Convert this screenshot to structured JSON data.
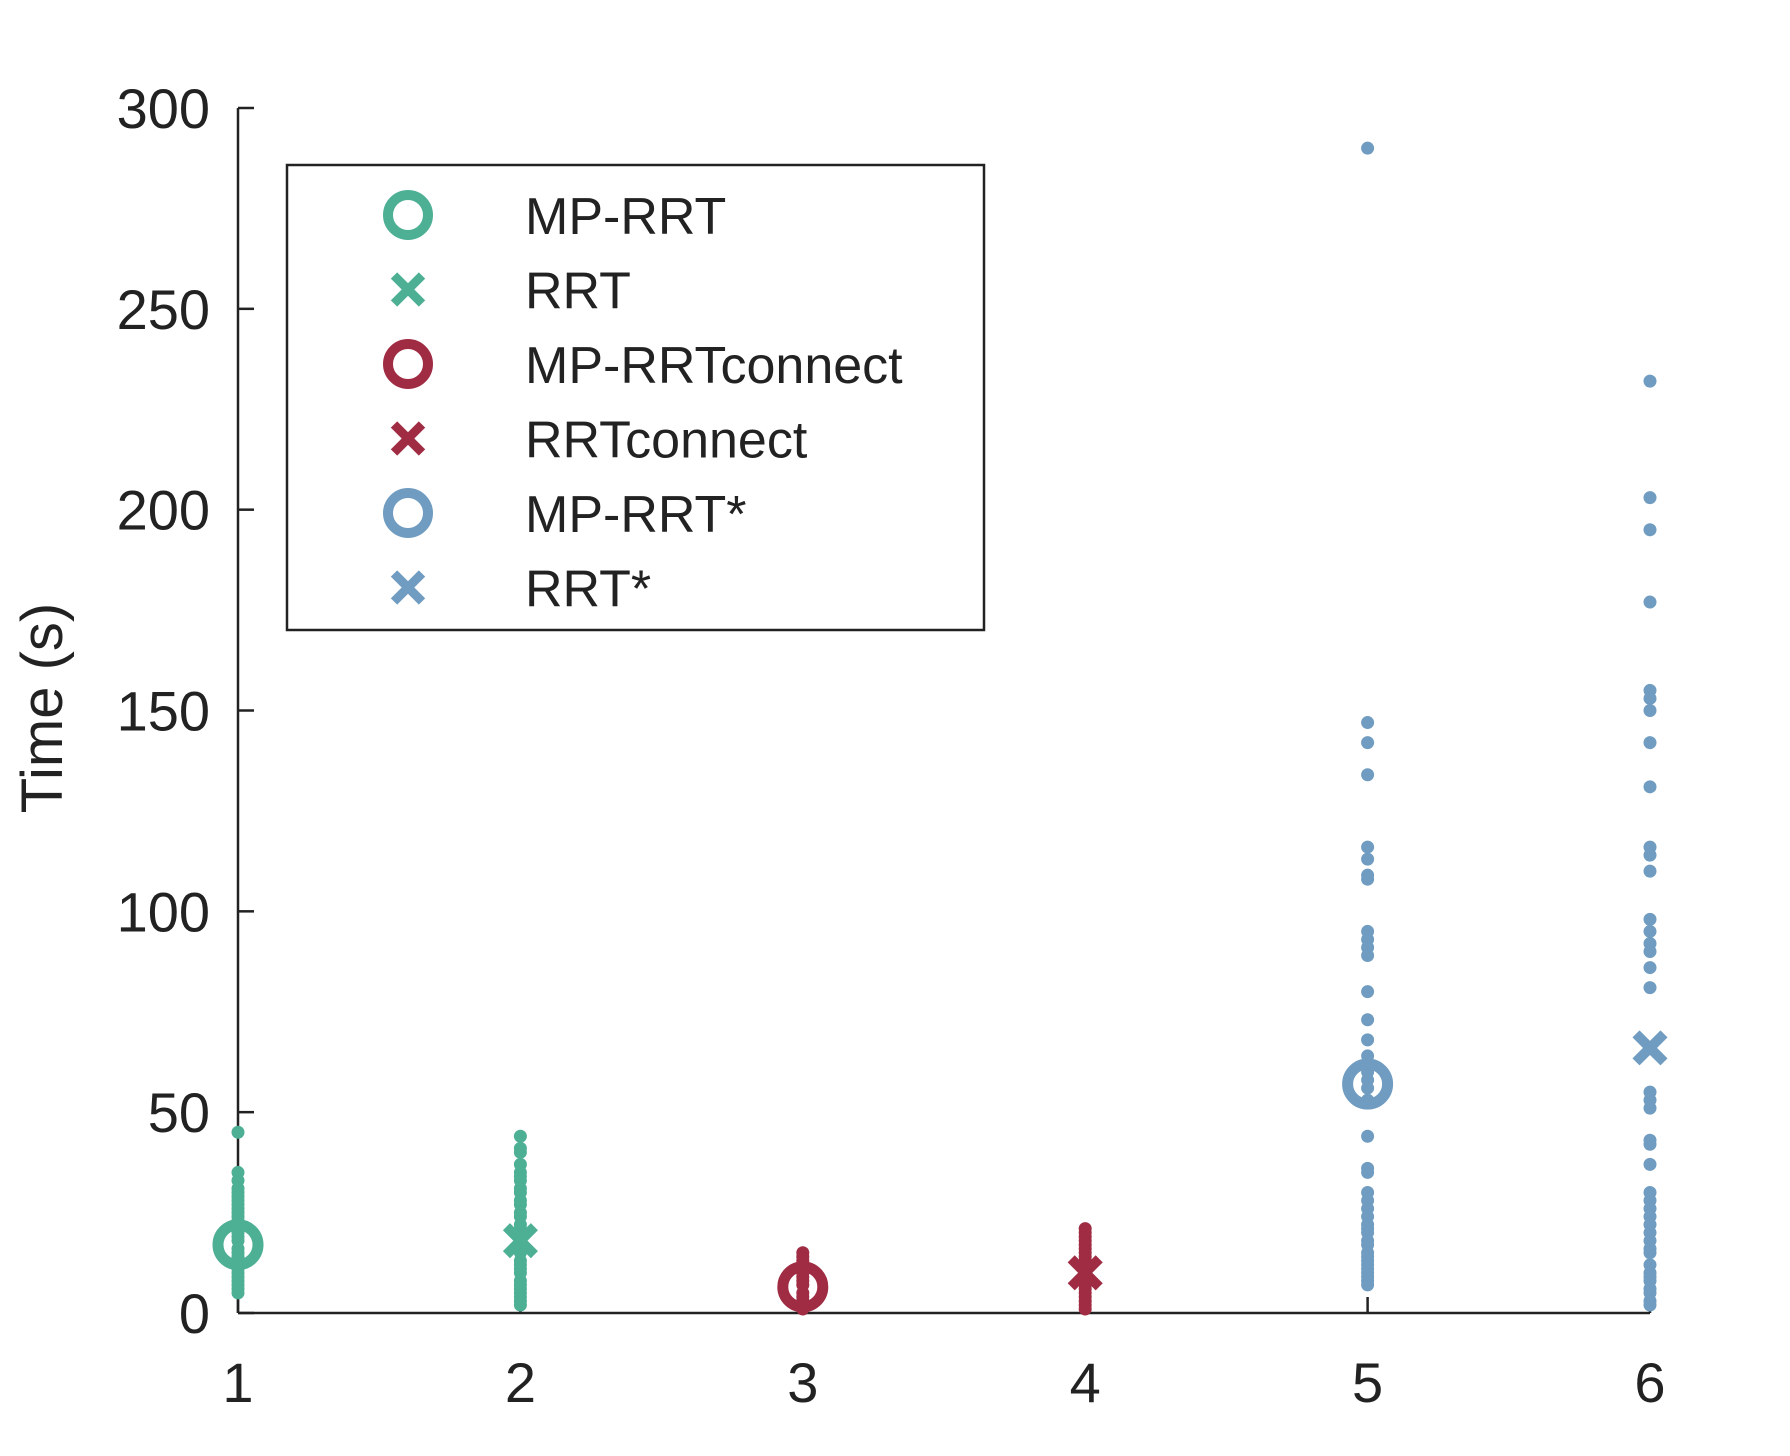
{
  "chart_data": {
    "type": "scatter",
    "title": "",
    "xlabel": "",
    "ylabel": "Time (s)",
    "xlim": [
      1,
      6
    ],
    "ylim": [
      0,
      300
    ],
    "x_ticks": [
      1,
      2,
      3,
      4,
      5,
      6
    ],
    "y_ticks": [
      0,
      50,
      100,
      150,
      200,
      250,
      300
    ],
    "grid": false,
    "legend_position": "top-left",
    "series": [
      {
        "name": "MP-RRT",
        "color": "#4daf94",
        "marker": "circle",
        "x": 1,
        "summary_value": 17,
        "points": [
          45,
          35,
          33,
          31,
          30,
          29,
          28,
          27,
          26,
          25,
          24,
          23,
          22,
          21,
          20,
          19,
          18,
          16,
          15,
          14,
          13,
          12,
          11,
          10,
          9,
          8,
          7,
          6,
          5
        ]
      },
      {
        "name": "RRT",
        "color": "#4daf94",
        "marker": "x",
        "x": 2,
        "summary_value": 18,
        "points": [
          44,
          41,
          40,
          37,
          35,
          34,
          33,
          31,
          30,
          28,
          27,
          25,
          24,
          22,
          21,
          20,
          19,
          17,
          16,
          15,
          13,
          12,
          11,
          10,
          8,
          7,
          6,
          5,
          4,
          3,
          2
        ]
      },
      {
        "name": "MP-RRTconnect",
        "color": "#a02c44",
        "marker": "circle",
        "x": 3,
        "summary_value": 6.5,
        "points": [
          15,
          14,
          13,
          12,
          11,
          10,
          9,
          8,
          7,
          5,
          4,
          3,
          2,
          1
        ]
      },
      {
        "name": "RRTconnect",
        "color": "#a02c44",
        "marker": "x",
        "x": 4,
        "summary_value": 10,
        "points": [
          21,
          20,
          19,
          18,
          17,
          16,
          15,
          14,
          13,
          12,
          11,
          9,
          8,
          7,
          6,
          5,
          4,
          3,
          2,
          1
        ]
      },
      {
        "name": "MP-RRT*",
        "color": "#6f9cc0",
        "marker": "circle",
        "x": 5,
        "summary_value": 57,
        "points": [
          290,
          147,
          142,
          134,
          116,
          113,
          109,
          108,
          95,
          93,
          91,
          89,
          80,
          73,
          68,
          64,
          60,
          58,
          56,
          53,
          44,
          36,
          35,
          30,
          28,
          26,
          24,
          22,
          21,
          20,
          18,
          17,
          15,
          14,
          13,
          12,
          11,
          10,
          9,
          8,
          7
        ]
      },
      {
        "name": "RRT*",
        "color": "#6f9cc0",
        "marker": "x",
        "x": 6,
        "summary_value": 66,
        "points": [
          232,
          203,
          195,
          177,
          155,
          153,
          150,
          142,
          131,
          116,
          114,
          110,
          98,
          95,
          92,
          90,
          86,
          81,
          66,
          55,
          53,
          51,
          43,
          42,
          37,
          30,
          28,
          26,
          24,
          22,
          20,
          18,
          16,
          15,
          12,
          10,
          9,
          8,
          6,
          5,
          3,
          2
        ]
      }
    ]
  }
}
